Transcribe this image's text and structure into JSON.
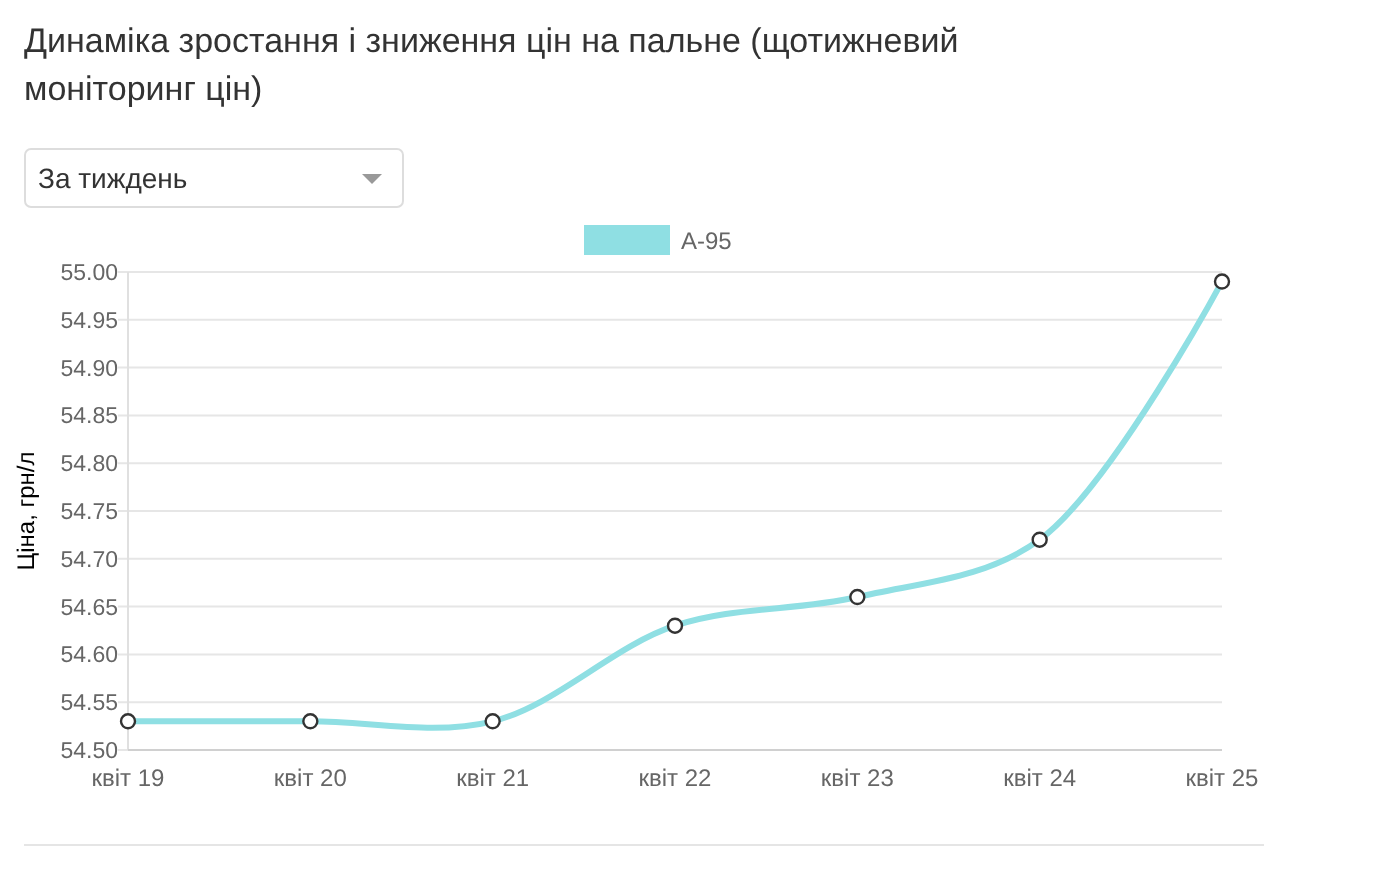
{
  "chart_data": {
    "type": "line",
    "title": "Динаміка зростання і зниження цін на пальне (щотижневий моніторинг цін)",
    "ylabel": "Ціна, грн/л",
    "annotations": [
      "За тиждень"
    ],
    "categories": [
      "квіт 19",
      "квіт 20",
      "квіт 21",
      "квіт 22",
      "квіт 23",
      "квіт 24",
      "квіт 25"
    ],
    "series": [
      {
        "name": "A-95",
        "color": "#8fdfe3",
        "values": [
          54.53,
          54.53,
          54.53,
          54.63,
          54.66,
          54.72,
          54.99
        ]
      }
    ],
    "ylim": [
      54.5,
      55.0
    ],
    "yticks": [
      {
        "value": 54.5,
        "label": "54.50"
      },
      {
        "value": 54.55,
        "label": "54.55"
      },
      {
        "value": 54.6,
        "label": "54.60"
      },
      {
        "value": 54.65,
        "label": "54.65"
      },
      {
        "value": 54.7,
        "label": "54.70"
      },
      {
        "value": 54.75,
        "label": "54.75"
      },
      {
        "value": 54.8,
        "label": "54.80"
      },
      {
        "value": 54.85,
        "label": "54.85"
      },
      {
        "value": 54.9,
        "label": "54.90"
      },
      {
        "value": 54.95,
        "label": "54.95"
      },
      {
        "value": 55.0,
        "label": "55.00"
      }
    ],
    "grid": "y",
    "legend": "top",
    "marker": "circle",
    "line_style": "solid"
  }
}
